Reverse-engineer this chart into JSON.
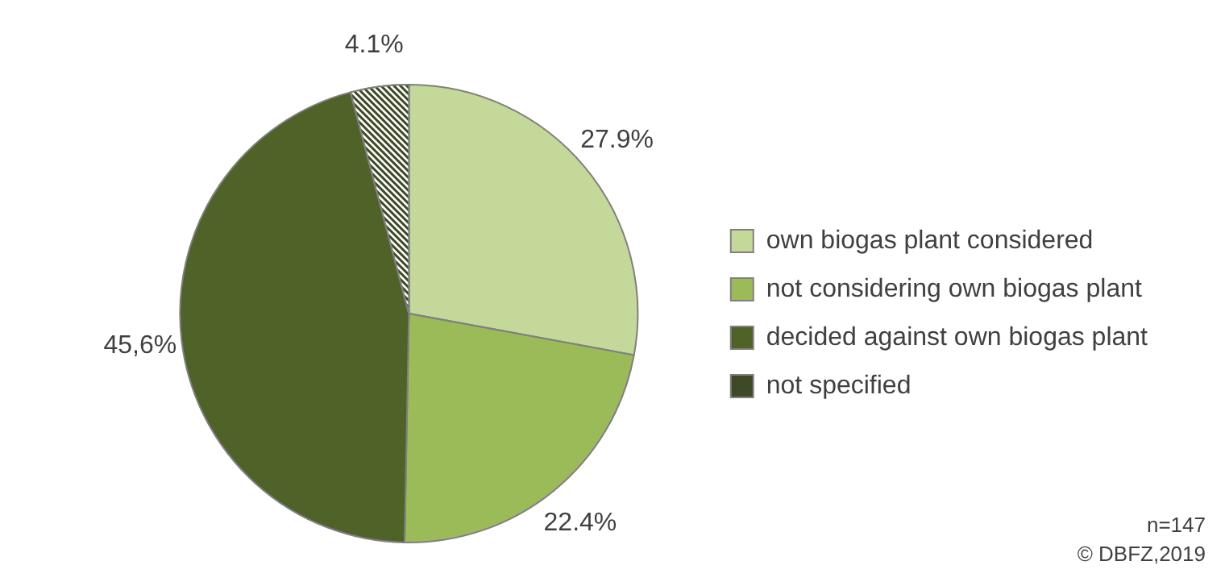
{
  "chart_data": {
    "type": "pie",
    "categories": [
      "own biogas plant considered",
      "not considering own biogas plant",
      "decided against own biogas plant",
      "not specified"
    ],
    "values": [
      27.9,
      22.4,
      45.6,
      4.1
    ],
    "value_labels": [
      "27.9%",
      "22.4%",
      "45,6%",
      "4.1%"
    ],
    "colors": [
      "#c4d89a",
      "#9bbb59",
      "#4f6228",
      "#3e4a26"
    ],
    "legend": "right",
    "annotations": [
      "n=147",
      "© DBFZ,2019"
    ]
  }
}
